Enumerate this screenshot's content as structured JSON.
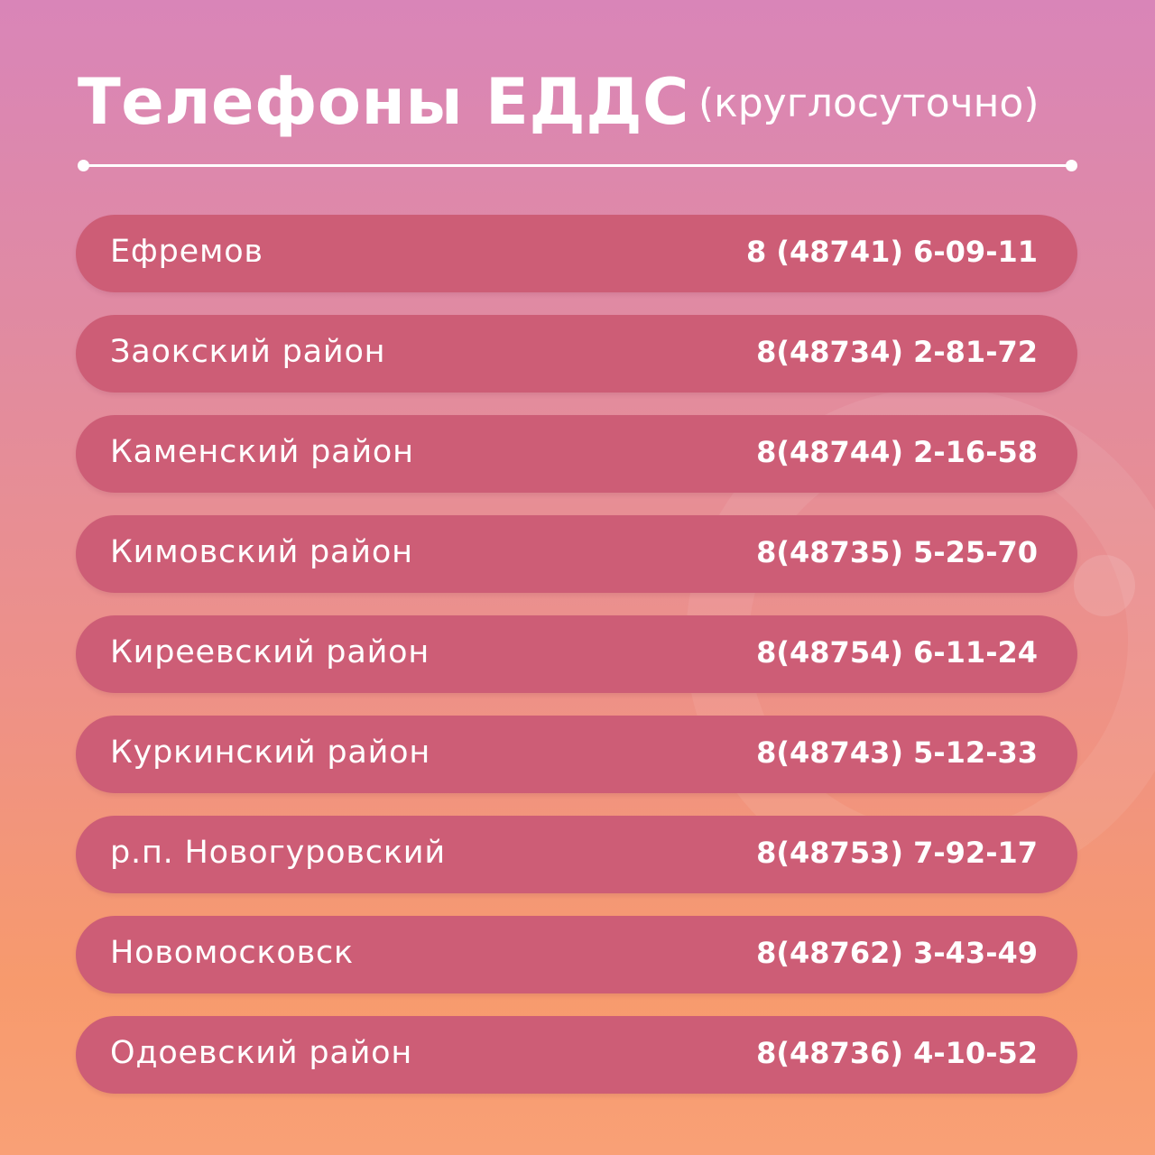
{
  "header": {
    "title": "Телефоны ЕДДС",
    "subtitle": "(круглосуточно)"
  },
  "contacts": [
    {
      "name": "Ефремов",
      "phone": "8 (48741) 6-09-11"
    },
    {
      "name": "Заокский район",
      "phone": "8(48734) 2-81-72"
    },
    {
      "name": "Каменский район",
      "phone": "8(48744) 2-16-58"
    },
    {
      "name": "Кимовский район",
      "phone": "8(48735) 5-25-70"
    },
    {
      "name": "Киреевский район",
      "phone": "8(48754) 6-11-24"
    },
    {
      "name": "Куркинский район",
      "phone": "8(48743) 5-12-33"
    },
    {
      "name": "р.п. Новогуровский",
      "phone": "8(48753) 7-92-17"
    },
    {
      "name": "Новомосковск",
      "phone": "8(48762) 3-43-49"
    },
    {
      "name": "Одоевский район",
      "phone": "8(48736) 4-10-52"
    }
  ],
  "colors": {
    "gradient_top": "#d985b8",
    "gradient_bottom": "#f9a076",
    "row_background": "#cd5d76",
    "text": "#ffffff"
  }
}
